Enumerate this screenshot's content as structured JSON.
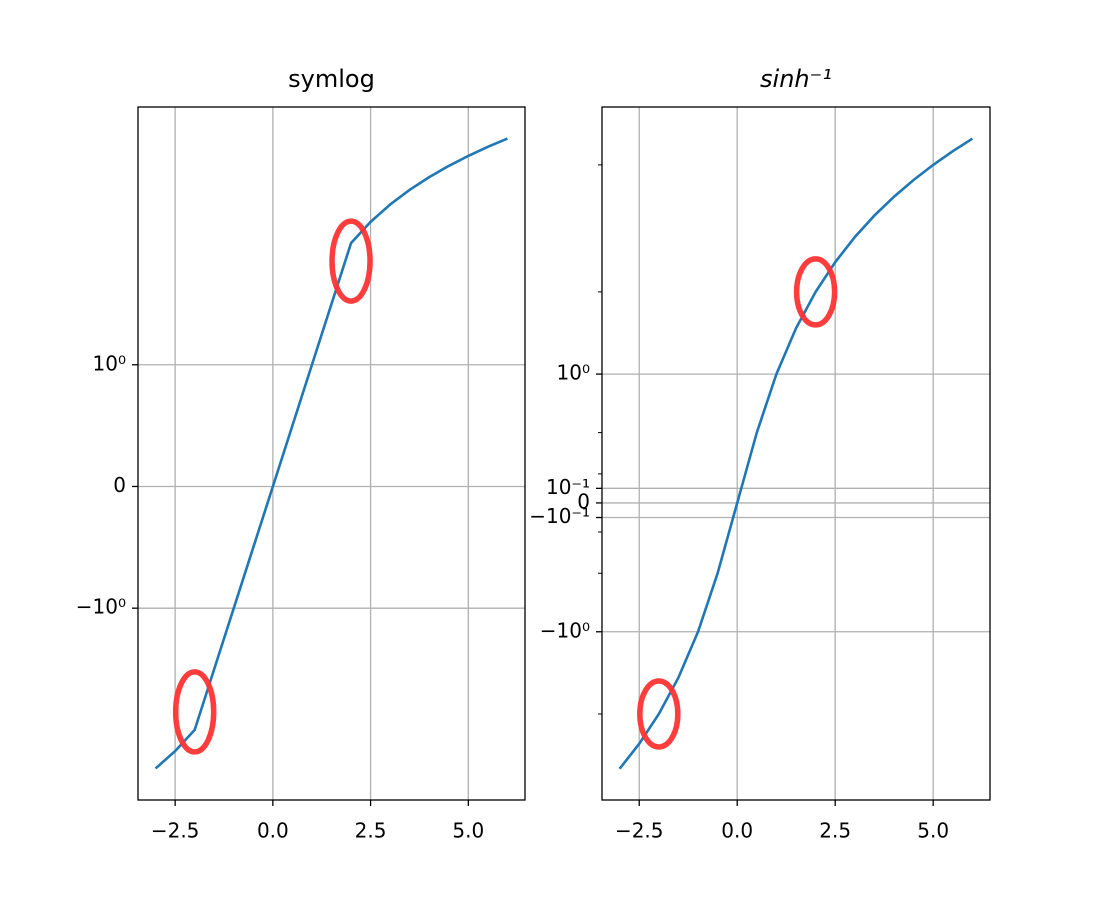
{
  "chart_data": [
    {
      "type": "line",
      "title": "symlog",
      "yscale": "symlog",
      "linthresh": 2,
      "grid": true,
      "x": [
        -3,
        -2.5,
        -2,
        -1.5,
        -1,
        -0.5,
        0,
        0.5,
        1,
        1.5,
        2,
        2.5,
        3,
        3.5,
        4,
        4.5,
        5,
        5.5,
        6
      ],
      "values": [
        -3,
        -2.5,
        -2,
        -1.5,
        -1,
        -0.5,
        0,
        0.5,
        1,
        1.5,
        2,
        2.5,
        3,
        3.5,
        4,
        4.5,
        5,
        5.5,
        6
      ],
      "color": "#1f77b4",
      "highlights": [
        {
          "x": 2,
          "y": 2
        },
        {
          "x": -2,
          "y": -2
        }
      ],
      "highlight_color": "#ff3333",
      "xlim": [
        -3.45,
        6.45
      ],
      "xticks": [
        {
          "value": -2.5,
          "label": "−2.5"
        },
        {
          "value": 0,
          "label": "0.0"
        },
        {
          "value": 2.5,
          "label": "2.5"
        },
        {
          "value": 5,
          "label": "5.0"
        }
      ],
      "ylim": [
        -4.18,
        8.36
      ],
      "yticks": [
        {
          "value": -1,
          "label": "−10⁰"
        },
        0,
        {
          "value": 1,
          "label": "10⁰"
        }
      ]
    },
    {
      "type": "line",
      "title": "sinh⁻¹",
      "yscale": "asinh",
      "linear_width": 1,
      "grid": true,
      "x": [
        -3,
        -2.5,
        -2,
        -1.5,
        -1,
        -0.5,
        0,
        0.5,
        1,
        1.5,
        2,
        2.5,
        3,
        3.5,
        4,
        4.5,
        5,
        5.5,
        6
      ],
      "values": [
        -3,
        -2.5,
        -2,
        -1.5,
        -1,
        -0.5,
        0,
        0.5,
        1,
        1.5,
        2,
        2.5,
        3,
        3.5,
        4,
        4.5,
        5,
        5.5,
        6
      ],
      "color": "#1f77b4",
      "highlights": [
        {
          "x": 2,
          "y": 2
        },
        {
          "x": -2,
          "y": -2
        }
      ],
      "highlight_color": "#ff3333",
      "xlim": [
        -3.45,
        6.45
      ],
      "xticks": [
        {
          "value": -2.5,
          "label": "−2.5"
        },
        {
          "value": 0,
          "label": "0.0"
        },
        {
          "value": 2.5,
          "label": "2.5"
        },
        {
          "value": 5,
          "label": "5.0"
        }
      ],
      "ylim": [
        -3.75,
        7.47
      ],
      "yticks": [
        {
          "value": -1,
          "label": "−10⁰"
        },
        {
          "value": -0.1,
          "label": "−10⁻¹"
        },
        0,
        {
          "value": 0.1,
          "label": "10⁻¹"
        },
        {
          "value": 1,
          "label": "10⁰"
        }
      ],
      "yminorticks": [
        -2,
        -0.5,
        -0.2,
        0.2,
        0.5,
        2,
        5
      ]
    }
  ]
}
